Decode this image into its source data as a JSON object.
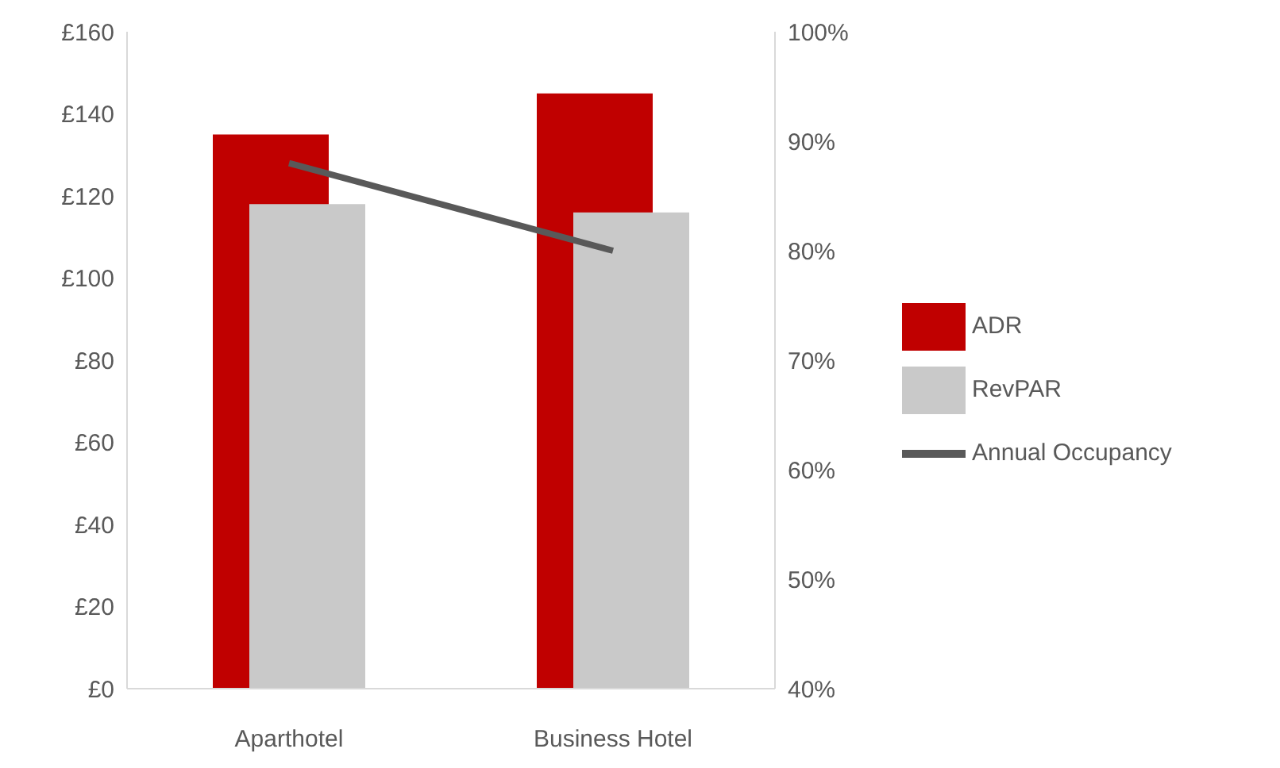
{
  "chart_data": {
    "type": "bar",
    "categories": [
      "Aparthotel",
      "Business Hotel"
    ],
    "series": [
      {
        "name": "ADR",
        "color": "#c00000",
        "values": [
          135,
          145
        ]
      },
      {
        "name": "RevPAR",
        "color": "#c9c9c9",
        "values": [
          118,
          116
        ]
      },
      {
        "name": "Annual Occupancy",
        "type": "line",
        "axis": "y2",
        "color": "#595959",
        "values": [
          88,
          80
        ]
      }
    ],
    "ylim": [
      0,
      160
    ],
    "yticks": [
      {
        "value": 0,
        "label": "£0"
      },
      {
        "value": 20,
        "label": "£20"
      },
      {
        "value": 40,
        "label": "£40"
      },
      {
        "value": 60,
        "label": "£60"
      },
      {
        "value": 80,
        "label": "£80"
      },
      {
        "value": 100,
        "label": "£100"
      },
      {
        "value": 120,
        "label": "£120"
      },
      {
        "value": 140,
        "label": "£140"
      },
      {
        "value": 160,
        "label": "£160"
      }
    ],
    "y2lim": [
      40,
      100
    ],
    "y2ticks": [
      {
        "value": 40,
        "label": "40%"
      },
      {
        "value": 50,
        "label": "50%"
      },
      {
        "value": 60,
        "label": "60%"
      },
      {
        "value": 70,
        "label": "70%"
      },
      {
        "value": 80,
        "label": "80%"
      },
      {
        "value": 90,
        "label": "90%"
      },
      {
        "value": 100,
        "label": "100%"
      }
    ],
    "legend": "right",
    "grid": false
  }
}
